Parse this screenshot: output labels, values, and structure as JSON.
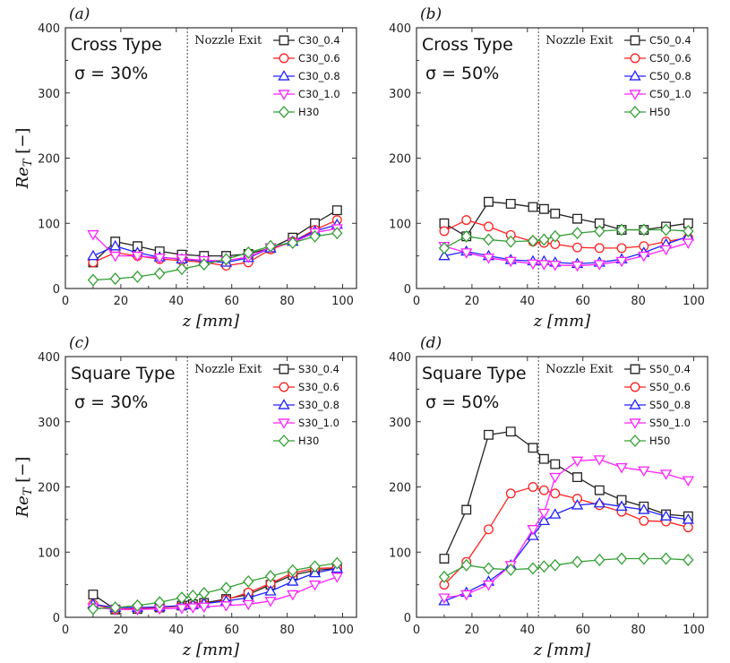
{
  "chart_data": [
    {
      "type": "line",
      "panel_label": "(a)",
      "type_label": "Cross Type",
      "sigma_label": "σ = 30%",
      "annotation": "Nozzle Exit",
      "nozzle_exit_z": 44,
      "xlabel": "z [mm]",
      "ylabel": "Re_T [−]",
      "xlim": [
        0,
        105
      ],
      "ylim": [
        0,
        400
      ],
      "xticks": [
        0,
        20,
        40,
        60,
        80,
        100
      ],
      "yticks": [
        0,
        100,
        200,
        300,
        400
      ],
      "legend_position": "top-right",
      "series": [
        {
          "name": "C30_0.4",
          "marker": "square",
          "color": "#222222",
          "x": [
            10,
            18,
            26,
            34,
            42,
            50,
            58,
            66,
            74,
            82,
            90,
            98
          ],
          "y": [
            40,
            72,
            65,
            57,
            52,
            50,
            50,
            53,
            62,
            78,
            100,
            120
          ]
        },
        {
          "name": "C30_0.6",
          "marker": "circle",
          "color": "#ff2222",
          "x": [
            10,
            18,
            26,
            34,
            42,
            50,
            58,
            66,
            74,
            82,
            90,
            98
          ],
          "y": [
            40,
            55,
            50,
            45,
            43,
            40,
            35,
            40,
            60,
            72,
            90,
            105
          ]
        },
        {
          "name": "C30_0.8",
          "marker": "triangle-up",
          "color": "#2222ff",
          "x": [
            10,
            18,
            26,
            34,
            42,
            50,
            58,
            66,
            74,
            82,
            90,
            98
          ],
          "y": [
            50,
            65,
            55,
            48,
            45,
            42,
            40,
            47,
            62,
            72,
            88,
            98
          ]
        },
        {
          "name": "C30_1.0",
          "marker": "triangle-down",
          "color": "#ff22ff",
          "x": [
            10,
            18,
            26,
            34,
            42,
            50,
            58,
            66,
            74,
            82,
            90,
            98
          ],
          "y": [
            83,
            50,
            50,
            47,
            46,
            43,
            43,
            48,
            63,
            70,
            86,
            92
          ]
        },
        {
          "name": "H30",
          "marker": "diamond",
          "color": "#33a033",
          "x": [
            10,
            18,
            26,
            34,
            42,
            50,
            58,
            66,
            74,
            82,
            90,
            98
          ],
          "y": [
            13,
            15,
            18,
            23,
            30,
            37,
            45,
            55,
            65,
            70,
            80,
            85
          ]
        }
      ]
    },
    {
      "type": "line",
      "panel_label": "(b)",
      "type_label": "Cross Type",
      "sigma_label": "σ = 50%",
      "annotation": "Nozzle Exit",
      "nozzle_exit_z": 44,
      "xlabel": "z [mm]",
      "ylabel": "",
      "xlim": [
        0,
        105
      ],
      "ylim": [
        0,
        400
      ],
      "xticks": [
        0,
        20,
        40,
        60,
        80,
        100
      ],
      "yticks": [
        0,
        100,
        200,
        300,
        400
      ],
      "legend_position": "top-right",
      "series": [
        {
          "name": "C50_0.4",
          "marker": "square",
          "color": "#222222",
          "x": [
            10,
            18,
            26,
            34,
            42,
            46,
            50,
            58,
            66,
            74,
            82,
            90,
            98
          ],
          "y": [
            100,
            80,
            133,
            130,
            125,
            122,
            115,
            107,
            100,
            90,
            90,
            95,
            100
          ]
        },
        {
          "name": "C50_0.6",
          "marker": "circle",
          "color": "#ff2222",
          "x": [
            10,
            18,
            26,
            34,
            42,
            46,
            50,
            58,
            66,
            74,
            82,
            90,
            98
          ],
          "y": [
            88,
            105,
            95,
            82,
            72,
            70,
            68,
            63,
            62,
            62,
            65,
            72,
            78
          ]
        },
        {
          "name": "C50_0.8",
          "marker": "triangle-up",
          "color": "#2222ff",
          "x": [
            10,
            18,
            26,
            34,
            42,
            46,
            50,
            58,
            66,
            74,
            82,
            90,
            98
          ],
          "y": [
            50,
            57,
            50,
            44,
            42,
            42,
            40,
            38,
            40,
            45,
            55,
            68,
            80
          ]
        },
        {
          "name": "C50_1.0",
          "marker": "triangle-down",
          "color": "#ff22ff",
          "x": [
            10,
            18,
            26,
            34,
            42,
            46,
            50,
            58,
            66,
            74,
            82,
            90,
            98
          ],
          "y": [
            65,
            55,
            47,
            42,
            38,
            37,
            36,
            35,
            37,
            42,
            50,
            60,
            70
          ]
        },
        {
          "name": "H50",
          "marker": "diamond",
          "color": "#33a033",
          "x": [
            10,
            18,
            26,
            34,
            42,
            46,
            50,
            58,
            66,
            74,
            82,
            90,
            98
          ],
          "y": [
            62,
            80,
            75,
            72,
            73,
            75,
            80,
            85,
            88,
            90,
            90,
            90,
            88
          ]
        }
      ]
    },
    {
      "type": "line",
      "panel_label": "(c)",
      "type_label": "Square Type",
      "sigma_label": "σ = 30%",
      "annotation": "Nozzle Exit",
      "nozzle_exit_z": 44,
      "xlabel": "z [mm]",
      "ylabel": "Re_T [−]",
      "xlim": [
        0,
        105
      ],
      "ylim": [
        0,
        400
      ],
      "xticks": [
        0,
        20,
        40,
        60,
        80,
        100
      ],
      "yticks": [
        0,
        100,
        200,
        300,
        400
      ],
      "legend_position": "top-right",
      "series": [
        {
          "name": "S30_0.4",
          "marker": "square",
          "color": "#222222",
          "x": [
            10,
            18,
            26,
            34,
            42,
            46,
            50,
            58,
            66,
            74,
            82,
            90,
            98
          ],
          "y": [
            35,
            12,
            13,
            15,
            18,
            20,
            22,
            28,
            35,
            50,
            65,
            72,
            75
          ]
        },
        {
          "name": "S30_0.6",
          "marker": "circle",
          "color": "#ff2222",
          "x": [
            10,
            18,
            26,
            34,
            42,
            46,
            50,
            58,
            66,
            74,
            82,
            90,
            98
          ],
          "y": [
            20,
            12,
            14,
            15,
            17,
            18,
            20,
            27,
            38,
            52,
            68,
            75,
            76
          ]
        },
        {
          "name": "S30_0.8",
          "marker": "triangle-up",
          "color": "#2222ff",
          "x": [
            10,
            18,
            26,
            34,
            42,
            46,
            50,
            58,
            66,
            74,
            82,
            90,
            98
          ],
          "y": [
            20,
            15,
            15,
            16,
            18,
            19,
            21,
            25,
            30,
            40,
            55,
            68,
            75
          ]
        },
        {
          "name": "S30_1.0",
          "marker": "triangle-down",
          "color": "#ff22ff",
          "x": [
            10,
            18,
            26,
            34,
            42,
            46,
            50,
            58,
            66,
            74,
            82,
            90,
            98
          ],
          "y": [
            15,
            12,
            12,
            13,
            14,
            15,
            16,
            18,
            20,
            25,
            35,
            50,
            62
          ]
        },
        {
          "name": "H30",
          "marker": "diamond",
          "color": "#33a033",
          "x": [
            10,
            18,
            26,
            34,
            42,
            46,
            50,
            58,
            66,
            74,
            82,
            90,
            98
          ],
          "y": [
            13,
            15,
            18,
            23,
            30,
            33,
            37,
            45,
            55,
            63,
            72,
            78,
            83
          ]
        }
      ]
    },
    {
      "type": "line",
      "panel_label": "(d)",
      "type_label": "Square Type",
      "sigma_label": "σ = 50%",
      "annotation": "Nozzle Exit",
      "nozzle_exit_z": 44,
      "xlabel": "z [mm]",
      "ylabel": "",
      "xlim": [
        0,
        105
      ],
      "ylim": [
        0,
        400
      ],
      "xticks": [
        0,
        20,
        40,
        60,
        80,
        100
      ],
      "yticks": [
        0,
        100,
        200,
        300,
        400
      ],
      "legend_position": "top-right",
      "series": [
        {
          "name": "S50_0.4",
          "marker": "square",
          "color": "#222222",
          "x": [
            10,
            18,
            26,
            34,
            42,
            46,
            50,
            58,
            66,
            74,
            82,
            90,
            98
          ],
          "y": [
            90,
            165,
            280,
            285,
            260,
            243,
            235,
            215,
            195,
            180,
            170,
            158,
            155
          ]
        },
        {
          "name": "S50_0.6",
          "marker": "circle",
          "color": "#ff2222",
          "x": [
            10,
            18,
            26,
            34,
            42,
            46,
            50,
            58,
            66,
            74,
            82,
            90,
            98
          ],
          "y": [
            50,
            85,
            135,
            190,
            200,
            195,
            190,
            182,
            172,
            162,
            148,
            147,
            138
          ]
        },
        {
          "name": "S50_0.8",
          "marker": "triangle-up",
          "color": "#2222ff",
          "x": [
            10,
            18,
            26,
            34,
            42,
            46,
            50,
            58,
            66,
            74,
            82,
            90,
            98
          ],
          "y": [
            25,
            38,
            55,
            80,
            125,
            148,
            158,
            172,
            175,
            170,
            165,
            155,
            150
          ]
        },
        {
          "name": "S50_1.0",
          "marker": "triangle-down",
          "color": "#ff22ff",
          "x": [
            10,
            18,
            26,
            34,
            42,
            46,
            50,
            58,
            66,
            74,
            82,
            90,
            98
          ],
          "y": [
            30,
            35,
            50,
            80,
            135,
            160,
            215,
            240,
            242,
            230,
            225,
            220,
            210
          ]
        },
        {
          "name": "H50",
          "marker": "diamond",
          "color": "#33a033",
          "x": [
            10,
            18,
            26,
            34,
            42,
            46,
            50,
            58,
            66,
            74,
            82,
            90,
            98
          ],
          "y": [
            62,
            80,
            75,
            73,
            75,
            78,
            80,
            85,
            88,
            90,
            90,
            90,
            88
          ]
        }
      ]
    }
  ]
}
